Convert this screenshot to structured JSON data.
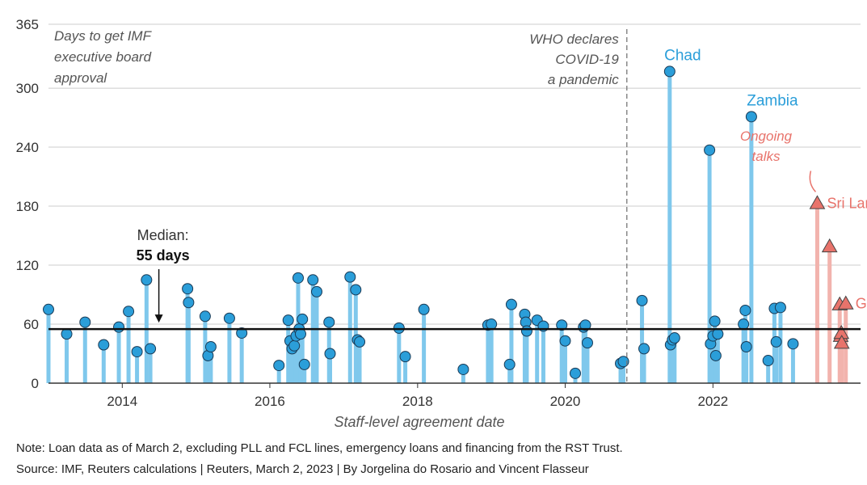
{
  "chart_data": {
    "type": "scatter",
    "title": "",
    "xlabel": "Staff-level agreement date",
    "ylabel": "",
    "ylim": [
      0,
      365
    ],
    "xlim": [
      "2013-01-01",
      "2024-01-01"
    ],
    "y_ticks": [
      0,
      60,
      120,
      180,
      240,
      300,
      365
    ],
    "x_ticks": [
      {
        "date": "2014-01-01",
        "label": "2014"
      },
      {
        "date": "2016-01-01",
        "label": "2016"
      },
      {
        "date": "2018-01-01",
        "label": "2018"
      },
      {
        "date": "2020-01-01",
        "label": "2020"
      },
      {
        "date": "2022-01-01",
        "label": "2022"
      }
    ],
    "grid": "horizontal",
    "y_axis_note": "Days to get IMF executive board approval",
    "median": {
      "value": 55,
      "label_line1": "Median:",
      "label_line2": "55 days",
      "label_date": "2014-07-01"
    },
    "pandemic_line": {
      "date": "2020-11-01",
      "label": "WHO declares COVID-19 a pandemic"
    },
    "ongoing_label": "Ongoing talks",
    "colors": {
      "completed": "#2b9ed9",
      "completed_stem": "#7fc8ec",
      "ongoing": "#e8736b",
      "ongoing_stem": "#f2b3ad",
      "text": "#333333",
      "grid": "#cccccc"
    },
    "series": [
      {
        "name": "Completed",
        "points": [
          {
            "x": "2013-01-01",
            "y": 75
          },
          {
            "x": "2013-04-01",
            "y": 50
          },
          {
            "x": "2013-07-01",
            "y": 62
          },
          {
            "x": "2013-10-01",
            "y": 39
          },
          {
            "x": "2013-12-15",
            "y": 57
          },
          {
            "x": "2014-02-01",
            "y": 73
          },
          {
            "x": "2014-03-15",
            "y": 32
          },
          {
            "x": "2014-05-01",
            "y": 105
          },
          {
            "x": "2014-05-20",
            "y": 35
          },
          {
            "x": "2014-11-20",
            "y": 96
          },
          {
            "x": "2014-11-25",
            "y": 82
          },
          {
            "x": "2015-02-15",
            "y": 68
          },
          {
            "x": "2015-03-01",
            "y": 28
          },
          {
            "x": "2015-03-15",
            "y": 37
          },
          {
            "x": "2015-06-15",
            "y": 66
          },
          {
            "x": "2015-08-15",
            "y": 51
          },
          {
            "x": "2016-02-15",
            "y": 18
          },
          {
            "x": "2016-04-01",
            "y": 64
          },
          {
            "x": "2016-04-10",
            "y": 43
          },
          {
            "x": "2016-04-20",
            "y": 35
          },
          {
            "x": "2016-05-01",
            "y": 38
          },
          {
            "x": "2016-05-10",
            "y": 48
          },
          {
            "x": "2016-05-20",
            "y": 107
          },
          {
            "x": "2016-05-25",
            "y": 55
          },
          {
            "x": "2016-06-01",
            "y": 50
          },
          {
            "x": "2016-06-10",
            "y": 65
          },
          {
            "x": "2016-06-20",
            "y": 19
          },
          {
            "x": "2016-08-01",
            "y": 105
          },
          {
            "x": "2016-08-20",
            "y": 93
          },
          {
            "x": "2016-10-20",
            "y": 62
          },
          {
            "x": "2016-10-25",
            "y": 30
          },
          {
            "x": "2017-02-01",
            "y": 108
          },
          {
            "x": "2017-03-01",
            "y": 95
          },
          {
            "x": "2017-03-10",
            "y": 44
          },
          {
            "x": "2017-03-20",
            "y": 42
          },
          {
            "x": "2017-10-01",
            "y": 56
          },
          {
            "x": "2017-11-01",
            "y": 27
          },
          {
            "x": "2018-02-01",
            "y": 75
          },
          {
            "x": "2018-08-15",
            "y": 14
          },
          {
            "x": "2018-12-15",
            "y": 59
          },
          {
            "x": "2019-01-01",
            "y": 60
          },
          {
            "x": "2019-04-01",
            "y": 19
          },
          {
            "x": "2019-04-10",
            "y": 80
          },
          {
            "x": "2019-06-15",
            "y": 70
          },
          {
            "x": "2019-06-20",
            "y": 62
          },
          {
            "x": "2019-06-25",
            "y": 53
          },
          {
            "x": "2019-08-15",
            "y": 64
          },
          {
            "x": "2019-09-15",
            "y": 58
          },
          {
            "x": "2019-12-15",
            "y": 59
          },
          {
            "x": "2020-01-01",
            "y": 43
          },
          {
            "x": "2020-02-20",
            "y": 10
          },
          {
            "x": "2020-04-01",
            "y": 57
          },
          {
            "x": "2020-04-10",
            "y": 59
          },
          {
            "x": "2020-04-20",
            "y": 41
          },
          {
            "x": "2020-10-01",
            "y": 20
          },
          {
            "x": "2020-10-15",
            "y": 22
          },
          {
            "x": "2021-01-15",
            "y": 84
          },
          {
            "x": "2021-01-25",
            "y": 35
          },
          {
            "x": "2021-06-01",
            "y": 317
          },
          {
            "x": "2021-06-05",
            "y": 39
          },
          {
            "x": "2021-06-15",
            "y": 44
          },
          {
            "x": "2021-06-25",
            "y": 46
          },
          {
            "x": "2021-12-15",
            "y": 237
          },
          {
            "x": "2021-12-20",
            "y": 40
          },
          {
            "x": "2022-01-01",
            "y": 48
          },
          {
            "x": "2022-01-10",
            "y": 63
          },
          {
            "x": "2022-01-15",
            "y": 28
          },
          {
            "x": "2022-01-25",
            "y": 50
          },
          {
            "x": "2022-06-01",
            "y": 60
          },
          {
            "x": "2022-06-10",
            "y": 74
          },
          {
            "x": "2022-06-15",
            "y": 37
          },
          {
            "x": "2022-07-10",
            "y": 271
          },
          {
            "x": "2022-10-01",
            "y": 23
          },
          {
            "x": "2022-11-01",
            "y": 76
          },
          {
            "x": "2022-11-10",
            "y": 42
          },
          {
            "x": "2022-12-01",
            "y": 77
          },
          {
            "x": "2023-02-01",
            "y": 40
          }
        ]
      },
      {
        "name": "Ongoing",
        "points": [
          {
            "x": "2023-06-01",
            "y": 183
          },
          {
            "x": "2023-08-01",
            "y": 139
          },
          {
            "x": "2023-09-20",
            "y": 80
          },
          {
            "x": "2023-09-25",
            "y": 48
          },
          {
            "x": "2023-09-28",
            "y": 51
          },
          {
            "x": "2023-09-30",
            "y": 41
          },
          {
            "x": "2023-10-20",
            "y": 81
          }
        ]
      }
    ],
    "annotations": [
      {
        "text": "Chad",
        "x": "2021-06-01",
        "y": 317,
        "color": "#2b9ed9"
      },
      {
        "text": "Zambia",
        "x": "2022-07-10",
        "y": 271,
        "color": "#2b9ed9"
      },
      {
        "text": "Sri Lanka",
        "x": "2023-06-01",
        "y": 183,
        "color": "#e8736b"
      },
      {
        "text": "Ghana",
        "x": "2023-10-20",
        "y": 81,
        "color": "#e8736b"
      }
    ]
  },
  "footnotes": {
    "note": "Note: Loan data as of March 2, excluding PLL and FCL lines, emergency loans and financing from the RST Trust.",
    "source": "Source: IMF, Reuters calculations | Reuters, March 2, 2023 | By Jorgelina do Rosario and Vincent Flasseur"
  }
}
